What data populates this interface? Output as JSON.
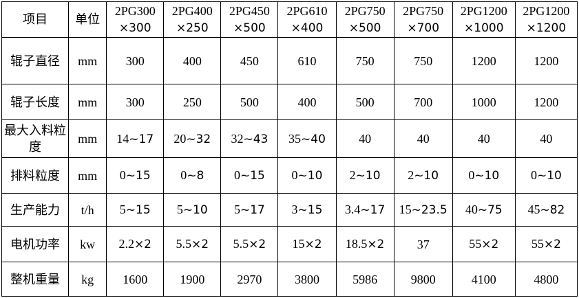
{
  "colors": {
    "border": "#000000",
    "text": "#000000",
    "background": "#ffffff"
  },
  "table": {
    "corner_header": "项目",
    "unit_header": "单位",
    "models": [
      {
        "line1": "2PG300",
        "line2": "×300"
      },
      {
        "line1": "2PG400",
        "line2": "×250"
      },
      {
        "line1": "2PG450",
        "line2": "×500"
      },
      {
        "line1": "2PG610",
        "line2": "×400"
      },
      {
        "line1": "2PG750",
        "line2": "×500"
      },
      {
        "line1": "2PG750",
        "line2": "×700"
      },
      {
        "line1": "2PG1200",
        "line2": "×1000"
      },
      {
        "line1": "2PG1200",
        "line2": "×1200"
      }
    ],
    "rows": [
      {
        "label": "辊子直径",
        "unit": "mm",
        "values": [
          "300",
          "400",
          "450",
          "610",
          "750",
          "750",
          "1200",
          "1200"
        ]
      },
      {
        "label": "辊子长度",
        "unit": "mm",
        "values": [
          "300",
          "250",
          "500",
          "400",
          "500",
          "700",
          "1000",
          "1200"
        ]
      },
      {
        "label": "最大入料粒度",
        "unit": "mm",
        "values": [
          "14~17",
          "20~32",
          "32~43",
          "35~40",
          "40",
          "40",
          "40",
          "40"
        ]
      },
      {
        "label": "排料粒度",
        "unit": "mm",
        "values": [
          "0~15",
          "0~8",
          "0~15",
          "0~10",
          "2~10",
          "2~10",
          "0~10",
          "0~10"
        ]
      },
      {
        "label": "生产能力",
        "unit": "t/h",
        "values": [
          "5~15",
          "5~10",
          "5~17",
          "3~15",
          "3.4~17",
          "15~23.5",
          "40~75",
          "45~82"
        ]
      },
      {
        "label": "电机功率",
        "unit": "kw",
        "values": [
          "2.2×2",
          "5.5×2",
          "5.5×2",
          "15×2",
          "18.5×2",
          "37",
          "55×2",
          "55×2"
        ]
      },
      {
        "label": "整机重量",
        "unit": "kg",
        "values": [
          "1600",
          "1900",
          "2970",
          "3800",
          "5986",
          "9800",
          "4100",
          "4800"
        ]
      }
    ]
  }
}
